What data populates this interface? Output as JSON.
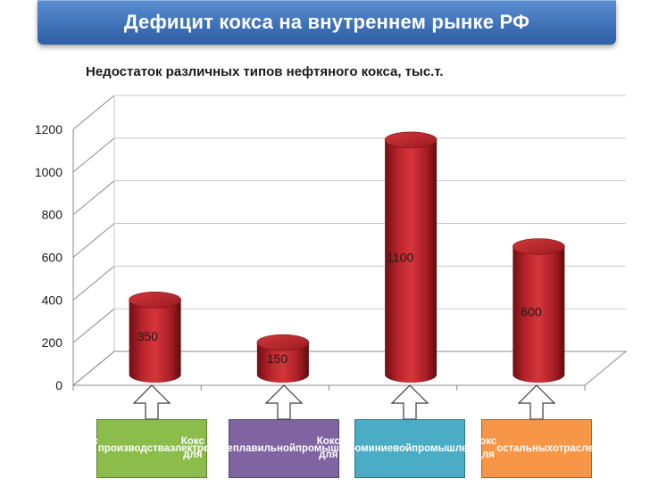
{
  "header": {
    "title": "Дефицит кокса на внутреннем рынке РФ"
  },
  "colors": {
    "banner": "#3f72b8",
    "bar": "#c0272d",
    "labels": [
      "#8cbd4b",
      "#8064a2",
      "#4bacc6",
      "#f79646"
    ]
  },
  "chart_data": {
    "type": "bar",
    "title": "Недостаток различных типов нефтяного кокса, тыс.т.",
    "categories": [
      "Кокс для производства электродов",
      "Кокс для сталеплавильной промышленности",
      "Кокс для алюминиевой промышленности",
      "Кокс для остальных отраслей"
    ],
    "values": [
      350,
      150,
      1100,
      600
    ],
    "data_labels": [
      "350",
      "150",
      "1100",
      "600"
    ],
    "ylim": [
      0,
      1200
    ],
    "yticks": [
      0,
      200,
      400,
      600,
      800,
      1000,
      1200
    ],
    "grid": true,
    "style": "3d-cylinder",
    "legend": "none"
  },
  "category_labels": [
    {
      "lines": [
        "Кокс для",
        "производства",
        "электродов"
      ],
      "icon": "arrow-up-icon"
    },
    {
      "lines": [
        "Кокс для",
        "сталеплавильной",
        "промышленности"
      ],
      "icon": "arrow-up-icon"
    },
    {
      "lines": [
        "Кокс для",
        "алюминиевой",
        "промышленности"
      ],
      "icon": "arrow-up-icon"
    },
    {
      "lines": [
        "Кокс для",
        "остальных",
        "отраслей"
      ],
      "icon": "arrow-up-icon"
    }
  ]
}
